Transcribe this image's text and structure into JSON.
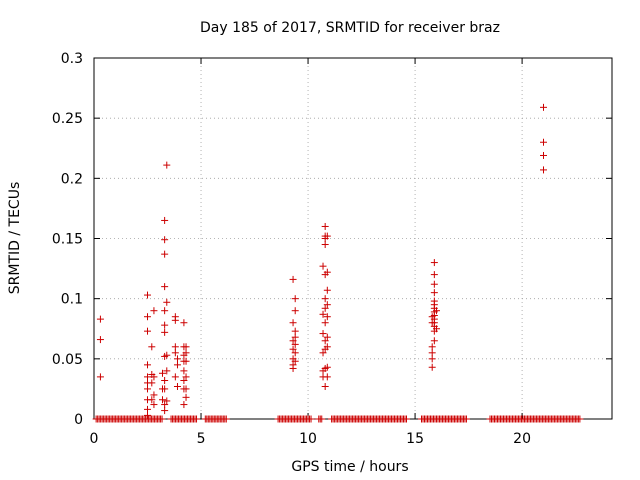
{
  "chart_data": {
    "type": "scatter",
    "title": "Day 185 of 2017, SRMTID for receiver braz",
    "xlabel": "GPS time / hours",
    "ylabel": "SRMTID / TECUs",
    "xlim": [
      0,
      24.2
    ],
    "ylim": [
      0,
      0.3
    ],
    "xticks": [
      0,
      5,
      10,
      15,
      20
    ],
    "xtick_labels": [
      "0",
      "5",
      "10",
      "15",
      "20"
    ],
    "yticks": [
      0,
      0.05,
      0.1,
      0.15,
      0.2,
      0.25,
      0.3
    ],
    "ytick_labels": [
      "0",
      "0.05",
      "0.1",
      "0.15",
      "0.2",
      "0.25",
      "0.3"
    ],
    "grid": true,
    "marker": "+",
    "color": "#cc0000",
    "series": [
      {
        "name": "SRMTID",
        "points": [
          [
            0.3,
            0.083
          ],
          [
            0.3,
            0.066
          ],
          [
            0.3,
            0.035
          ],
          [
            2.5,
            0.103
          ],
          [
            2.5,
            0.085
          ],
          [
            2.5,
            0.073
          ],
          [
            2.5,
            0.045
          ],
          [
            2.5,
            0.035
          ],
          [
            2.5,
            0.03
          ],
          [
            2.5,
            0.025
          ],
          [
            2.5,
            0.016
          ],
          [
            2.5,
            0.008
          ],
          [
            2.5,
            0.003
          ],
          [
            2.7,
            0.06
          ],
          [
            2.7,
            0.037
          ],
          [
            2.7,
            0.03
          ],
          [
            2.7,
            0.016
          ],
          [
            2.8,
            0.09
          ],
          [
            2.8,
            0.035
          ],
          [
            2.8,
            0.02
          ],
          [
            2.8,
            0.012
          ],
          [
            3.2,
            0.038
          ],
          [
            3.2,
            0.025
          ],
          [
            3.2,
            0.016
          ],
          [
            3.3,
            0.165
          ],
          [
            3.3,
            0.149
          ],
          [
            3.3,
            0.137
          ],
          [
            3.3,
            0.11
          ],
          [
            3.3,
            0.09
          ],
          [
            3.3,
            0.078
          ],
          [
            3.3,
            0.072
          ],
          [
            3.3,
            0.052
          ],
          [
            3.3,
            0.032
          ],
          [
            3.3,
            0.025
          ],
          [
            3.3,
            0.012
          ],
          [
            3.3,
            0.007
          ],
          [
            3.4,
            0.211
          ],
          [
            3.4,
            0.097
          ],
          [
            3.4,
            0.053
          ],
          [
            3.4,
            0.04
          ],
          [
            3.4,
            0.015
          ],
          [
            3.8,
            0.085
          ],
          [
            3.8,
            0.082
          ],
          [
            3.8,
            0.06
          ],
          [
            3.8,
            0.055
          ],
          [
            3.8,
            0.035
          ],
          [
            3.9,
            0.045
          ],
          [
            3.9,
            0.05
          ],
          [
            3.9,
            0.027
          ],
          [
            4.2,
            0.08
          ],
          [
            4.2,
            0.06
          ],
          [
            4.2,
            0.053
          ],
          [
            4.2,
            0.048
          ],
          [
            4.2,
            0.04
          ],
          [
            4.2,
            0.032
          ],
          [
            4.2,
            0.025
          ],
          [
            4.2,
            0.012
          ],
          [
            4.3,
            0.06
          ],
          [
            4.3,
            0.055
          ],
          [
            4.3,
            0.048
          ],
          [
            4.3,
            0.035
          ],
          [
            4.3,
            0.025
          ],
          [
            4.3,
            0.018
          ],
          [
            9.3,
            0.116
          ],
          [
            9.3,
            0.08
          ],
          [
            9.3,
            0.065
          ],
          [
            9.3,
            0.058
          ],
          [
            9.3,
            0.05
          ],
          [
            9.3,
            0.045
          ],
          [
            9.3,
            0.042
          ],
          [
            9.4,
            0.1
          ],
          [
            9.4,
            0.09
          ],
          [
            9.4,
            0.073
          ],
          [
            9.4,
            0.068
          ],
          [
            9.4,
            0.062
          ],
          [
            9.4,
            0.055
          ],
          [
            9.4,
            0.048
          ],
          [
            10.7,
            0.127
          ],
          [
            10.7,
            0.087
          ],
          [
            10.7,
            0.071
          ],
          [
            10.7,
            0.055
          ],
          [
            10.7,
            0.04
          ],
          [
            10.7,
            0.035
          ],
          [
            10.8,
            0.16
          ],
          [
            10.8,
            0.152
          ],
          [
            10.8,
            0.15
          ],
          [
            10.8,
            0.145
          ],
          [
            10.8,
            0.12
          ],
          [
            10.8,
            0.1
          ],
          [
            10.8,
            0.092
          ],
          [
            10.8,
            0.08
          ],
          [
            10.8,
            0.065
          ],
          [
            10.8,
            0.058
          ],
          [
            10.8,
            0.042
          ],
          [
            10.8,
            0.027
          ],
          [
            10.9,
            0.152
          ],
          [
            10.9,
            0.122
          ],
          [
            10.9,
            0.107
          ],
          [
            10.9,
            0.095
          ],
          [
            10.9,
            0.085
          ],
          [
            10.9,
            0.068
          ],
          [
            10.9,
            0.06
          ],
          [
            10.9,
            0.043
          ],
          [
            10.9,
            0.035
          ],
          [
            15.8,
            0.085
          ],
          [
            15.8,
            0.08
          ],
          [
            15.8,
            0.06
          ],
          [
            15.8,
            0.055
          ],
          [
            15.8,
            0.05
          ],
          [
            15.8,
            0.043
          ],
          [
            15.9,
            0.13
          ],
          [
            15.9,
            0.12
          ],
          [
            15.9,
            0.112
          ],
          [
            15.9,
            0.105
          ],
          [
            15.9,
            0.098
          ],
          [
            15.9,
            0.095
          ],
          [
            15.9,
            0.092
          ],
          [
            15.9,
            0.089
          ],
          [
            15.9,
            0.086
          ],
          [
            15.9,
            0.083
          ],
          [
            15.9,
            0.08
          ],
          [
            15.9,
            0.077
          ],
          [
            15.9,
            0.073
          ],
          [
            15.9,
            0.065
          ],
          [
            16.0,
            0.09
          ],
          [
            16.0,
            0.075
          ],
          [
            21.0,
            0.259
          ],
          [
            21.0,
            0.23
          ],
          [
            21.0,
            0.219
          ],
          [
            21.0,
            0.207
          ]
        ],
        "zero_runs": [
          [
            0.1,
            3.2
          ],
          [
            3.6,
            4.8
          ],
          [
            5.2,
            6.2
          ],
          [
            8.6,
            10.2
          ],
          [
            10.5,
            10.7
          ],
          [
            11.1,
            14.6
          ],
          [
            15.3,
            17.4
          ],
          [
            18.5,
            22.7
          ]
        ]
      }
    ]
  }
}
